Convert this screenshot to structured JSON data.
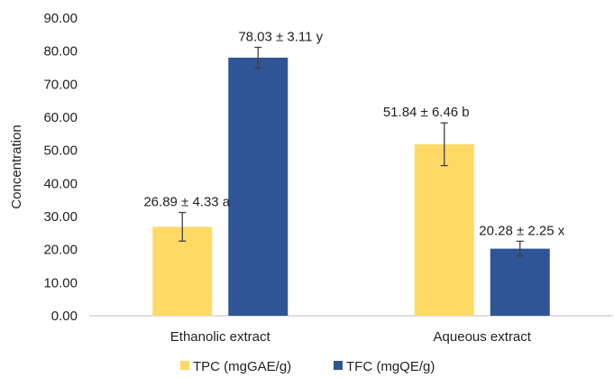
{
  "chart_data": {
    "type": "bar",
    "title": "",
    "xlabel": "",
    "ylabel": "Concentration",
    "ylim": [
      0,
      90
    ],
    "ytick_step": 10,
    "ytick_labels": [
      "0.00",
      "10.00",
      "20.00",
      "30.00",
      "40.00",
      "50.00",
      "60.00",
      "70.00",
      "80.00",
      "90.00"
    ],
    "categories": [
      "Ethanolic extract",
      "Aqueous extract"
    ],
    "grid": false,
    "legend_position": "bottom",
    "series": [
      {
        "name": "TPC (mgGAE/g)",
        "color": "#FFD966",
        "values": [
          26.89,
          51.84
        ],
        "errors": [
          4.33,
          6.46
        ],
        "labels": [
          "26.89 ± 4.33 a",
          "51.84 ± 6.46 b"
        ]
      },
      {
        "name": "TFC (mgQE/g)",
        "color": "#2F5597",
        "values": [
          78.03,
          20.28
        ],
        "errors": [
          3.11,
          2.25
        ],
        "labels": [
          "78.03 ± 3.11 y",
          "20.28 ± 2.25 x"
        ]
      }
    ]
  }
}
